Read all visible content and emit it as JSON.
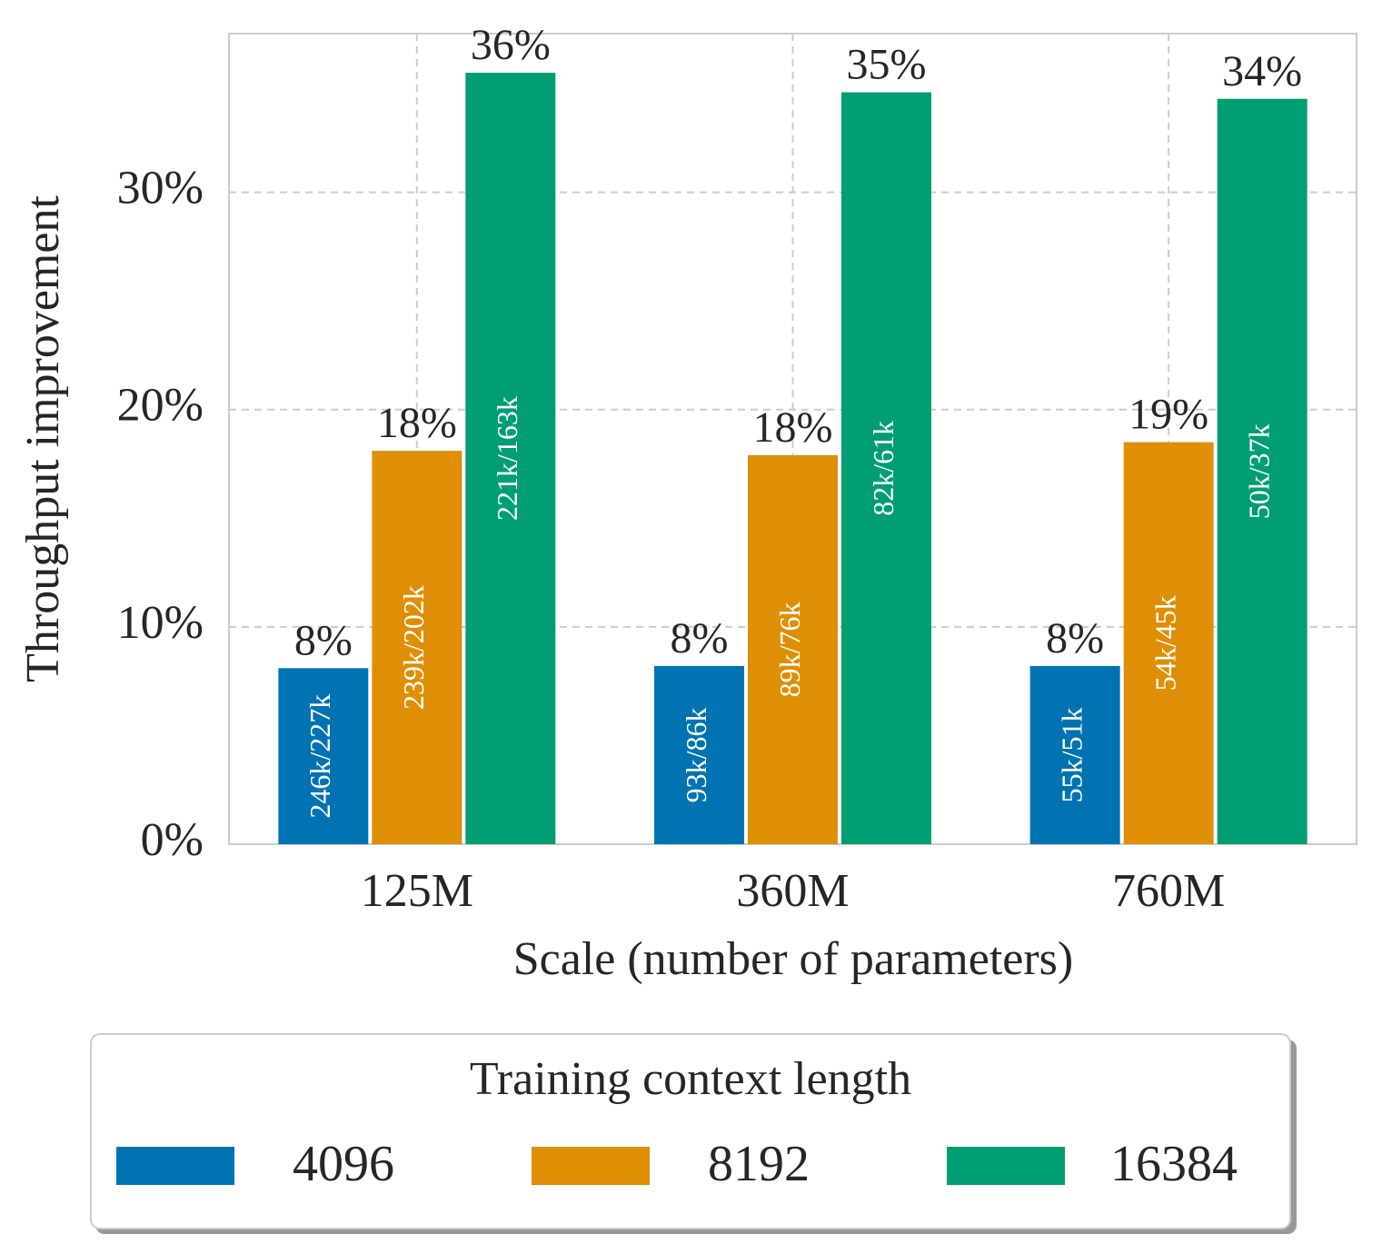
{
  "chart_data": {
    "type": "bar",
    "xlabel": "Scale (number of parameters)",
    "ylabel": "Throughput improvement",
    "categories": [
      "125M",
      "360M",
      "760M"
    ],
    "series": [
      {
        "name": "4096",
        "color": "#0173b2",
        "values": [
          8.1,
          8.2,
          8.2
        ],
        "value_labels": [
          "8%",
          "8%",
          "8%"
        ],
        "throughput_labels": [
          "246k/227k",
          "93k/86k",
          "55k/51k"
        ]
      },
      {
        "name": "8192",
        "color": "#de8f05",
        "values": [
          18.1,
          17.9,
          18.5
        ],
        "value_labels": [
          "18%",
          "18%",
          "19%"
        ],
        "throughput_labels": [
          "239k/202k",
          "89k/76k",
          "54k/45k"
        ]
      },
      {
        "name": "16384",
        "color": "#029e73",
        "values": [
          35.5,
          34.6,
          34.3
        ],
        "value_labels": [
          "36%",
          "35%",
          "34%"
        ],
        "throughput_labels": [
          "221k/163k",
          "82k/61k",
          "50k/37k"
        ]
      }
    ],
    "ylim": [
      0,
      37.3
    ],
    "yticks": [
      {
        "value": 0,
        "label": "0%"
      },
      {
        "value": 10,
        "label": "10%"
      },
      {
        "value": 20,
        "label": "20%"
      },
      {
        "value": 30,
        "label": "30%"
      }
    ],
    "grid": true,
    "legend": {
      "title": "Training context length",
      "position": "bottom"
    }
  }
}
